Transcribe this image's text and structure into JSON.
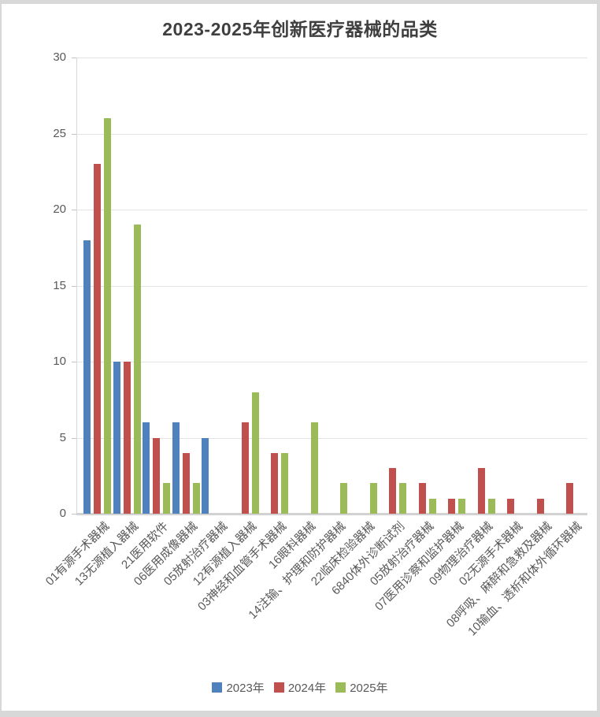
{
  "title": "2023-2025年创新医疗器械的品类",
  "chart_data": {
    "type": "bar",
    "title": "2023-2025年创新医疗器械的品类",
    "categories": [
      "01有源手术器械",
      "13无源植入器械",
      "21医用软件",
      "06医用成像器械",
      "05放射治疗器械",
      "12有源植入器械",
      "03神经和血管手术器械",
      "16眼科器械",
      "14注输、护理和防护器械",
      "22临床检验器械",
      "6840体外诊断试剂",
      "05放射治疗器械",
      "07医用诊察和监护器械",
      "09物理治疗器械",
      "02无源手术器械",
      "08呼吸、麻醉和急救及器械",
      "10输血、透析和体外循环器械"
    ],
    "series": [
      {
        "name": "2023年",
        "color": "#4F81BD",
        "values": [
          18,
          10,
          6,
          6,
          5,
          0,
          0,
          0,
          0,
          0,
          0,
          0,
          0,
          0,
          0,
          0,
          0
        ]
      },
      {
        "name": "2024年",
        "color": "#C0504D",
        "values": [
          23,
          10,
          5,
          4,
          0,
          6,
          4,
          0,
          0,
          0,
          3,
          2,
          1,
          3,
          1,
          1,
          2
        ]
      },
      {
        "name": "2025年",
        "color": "#9BBB59",
        "values": [
          26,
          19,
          2,
          2,
          0,
          8,
          4,
          6,
          2,
          2,
          2,
          1,
          1,
          1,
          0,
          0,
          0
        ]
      }
    ],
    "ylim": [
      0,
      30
    ],
    "yticks": [
      0,
      5,
      10,
      15,
      20,
      25,
      30
    ],
    "grid": true,
    "legend_position": "bottom",
    "xlabel": "",
    "ylabel": ""
  }
}
